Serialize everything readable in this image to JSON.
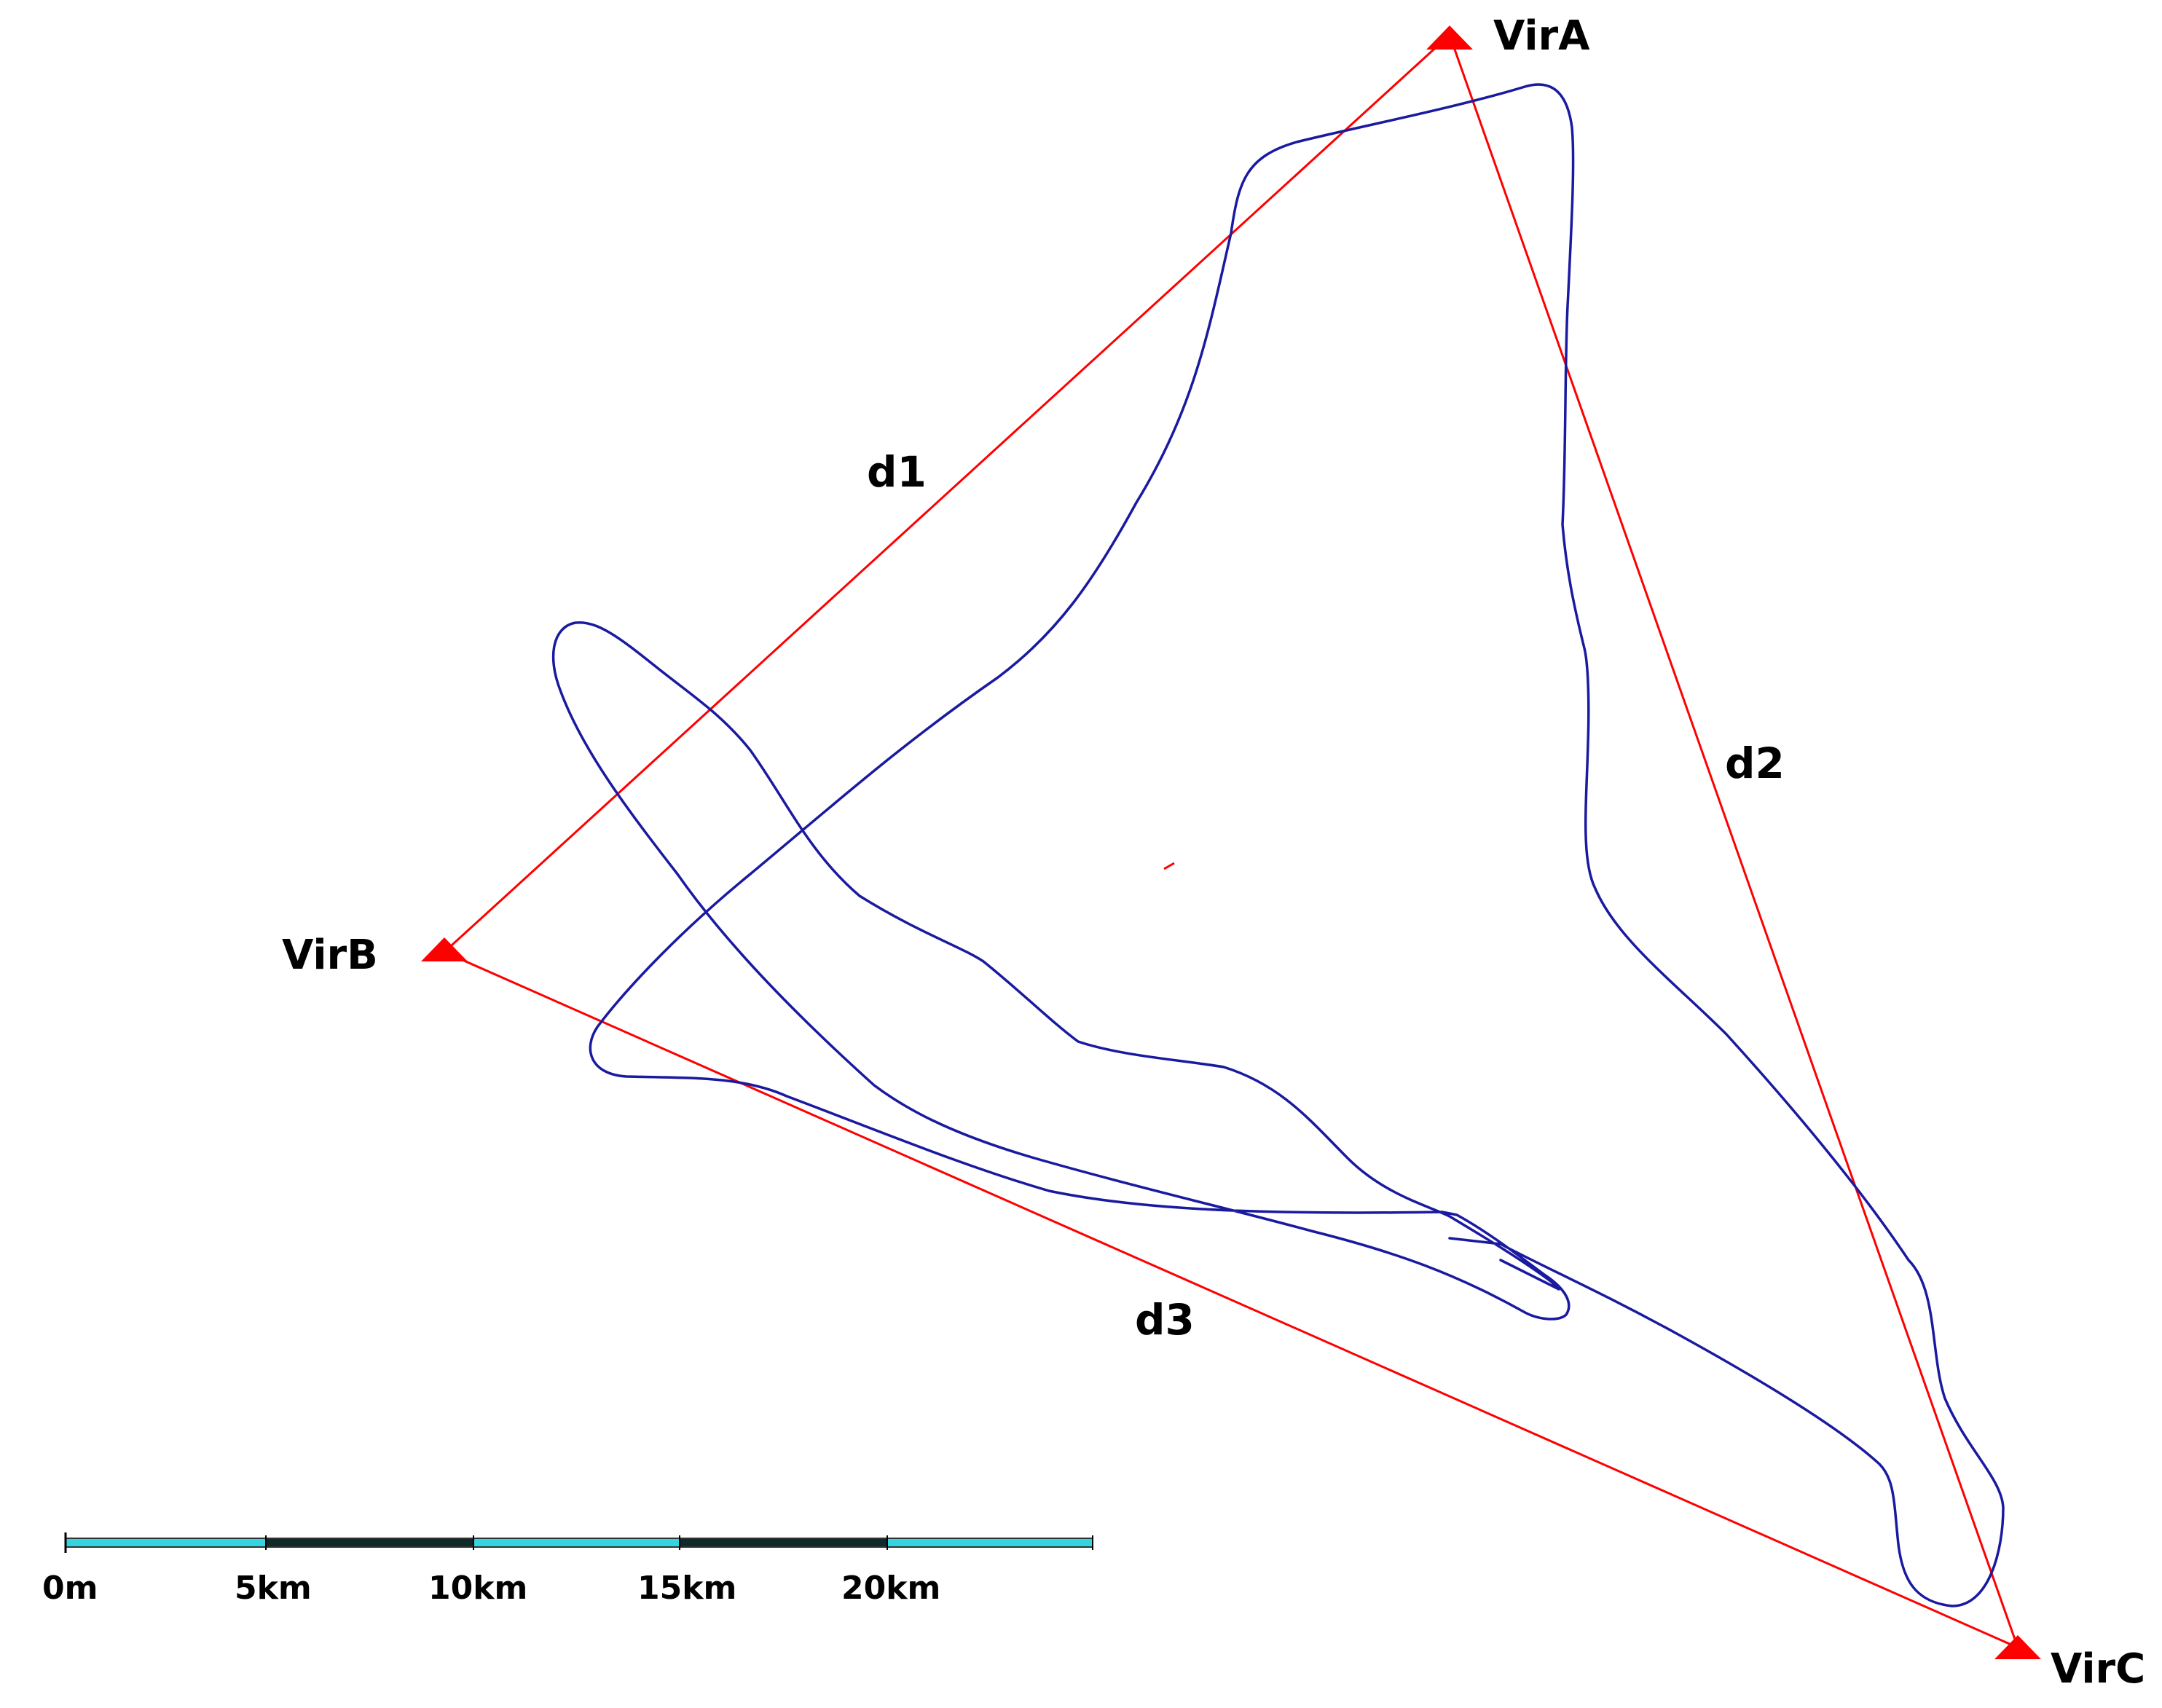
{
  "map": {
    "colors": {
      "background": "#ffffff",
      "baseline": "#ff0000",
      "station": "#ff0000",
      "track": "#1a1aa0",
      "text": "#000000",
      "scale_light": "#33d6e0",
      "scale_dark": "#0f2a2a",
      "scale_border": "#333333"
    },
    "icons": {
      "station": "red-triangle-icon"
    },
    "stations": [
      {
        "id": "a",
        "label": "VirA"
      },
      {
        "id": "b",
        "label": "VirB"
      },
      {
        "id": "c",
        "label": "VirC"
      }
    ],
    "baselines": [
      {
        "id": "d1",
        "label": "d1",
        "from": "b",
        "to": "a"
      },
      {
        "id": "d2",
        "label": "d2",
        "from": "a",
        "to": "c"
      },
      {
        "id": "d3",
        "label": "d3",
        "from": "b",
        "to": "c"
      }
    ],
    "scale_bar": {
      "labels": [
        "0m",
        "5km",
        "10km",
        "15km",
        "20km"
      ]
    }
  }
}
